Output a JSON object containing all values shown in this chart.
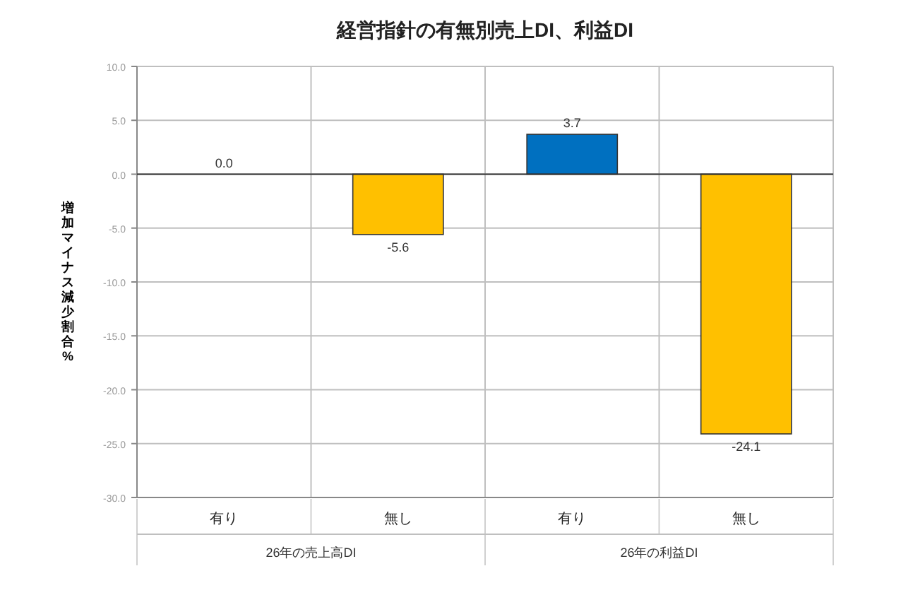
{
  "chart_data": {
    "type": "bar",
    "title": "経営指針の有無別売上DI、利益DI",
    "ylabel": "増加マイナス減少割合%",
    "categories": [
      "有り",
      "無し",
      "有り",
      "無し"
    ],
    "values": [
      0.0,
      -5.6,
      3.7,
      -24.1
    ],
    "colors": [
      "#0070c0",
      "#ffc000",
      "#0070c0",
      "#ffc000"
    ],
    "value_labels": [
      "0.0",
      "-5.6",
      "3.7",
      "-24.1"
    ],
    "ylim": [
      -30,
      10
    ],
    "yticks": [
      {
        "value": 10,
        "label": "10.0"
      },
      {
        "value": 5,
        "label": "5.0"
      },
      {
        "value": 0,
        "label": "0.0"
      },
      {
        "value": -5,
        "label": "-5.0"
      },
      {
        "value": -10,
        "label": "-10.0"
      },
      {
        "value": -15,
        "label": "-15.0"
      },
      {
        "value": -20,
        "label": "-20.0"
      },
      {
        "value": -25,
        "label": "-25.0"
      },
      {
        "value": -30,
        "label": "-30.0"
      }
    ],
    "grid": true,
    "annotations": [
      "26年の売上高DI",
      "26年の利益DI"
    ]
  }
}
